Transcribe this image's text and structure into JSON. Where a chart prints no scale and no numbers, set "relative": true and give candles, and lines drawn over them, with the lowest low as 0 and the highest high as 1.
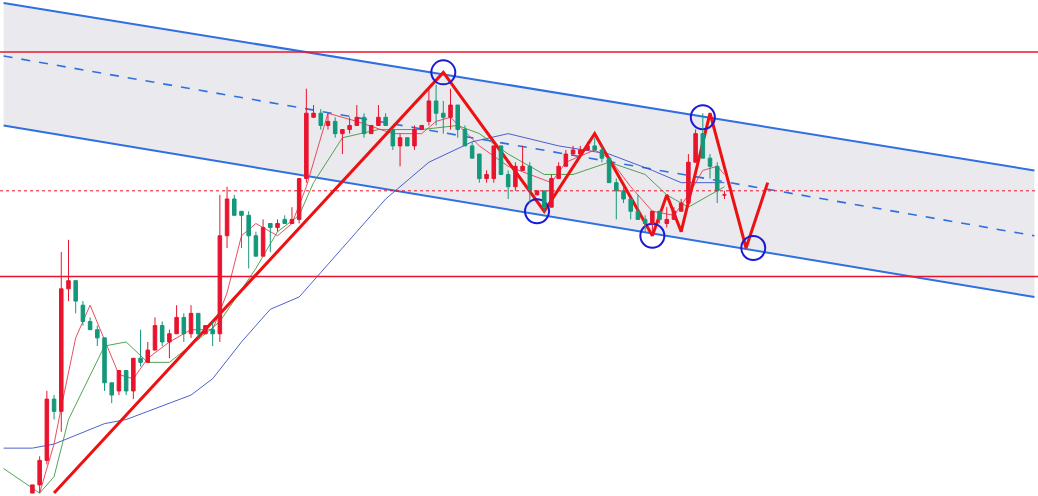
{
  "chart_data": {
    "type": "candlestick",
    "relative": true,
    "tick_labels": false,
    "categories": [
      null,
      null,
      null,
      null,
      null,
      null,
      null,
      null,
      null,
      null,
      null,
      null,
      null,
      null,
      null,
      null,
      null,
      null,
      null,
      null,
      null,
      null,
      null,
      null,
      null,
      null,
      null,
      null,
      null,
      null,
      null,
      null,
      null,
      null,
      null,
      null,
      null,
      null,
      null,
      null,
      null,
      null,
      null,
      null,
      null,
      null,
      null,
      null,
      null,
      null,
      null,
      null,
      null,
      null,
      null,
      null,
      null,
      null,
      null,
      null,
      null,
      null,
      null,
      null,
      null,
      null,
      null,
      null,
      null,
      null,
      null,
      null,
      null,
      null,
      null,
      null,
      null,
      null,
      null,
      null,
      null,
      null,
      null,
      null,
      null,
      null,
      null,
      null,
      null,
      null,
      null,
      null,
      null,
      null,
      null,
      null,
      null,
      null,
      null,
      null,
      null,
      null,
      null,
      null,
      null,
      null,
      null,
      null,
      null,
      null,
      null,
      null,
      null,
      null,
      null,
      null,
      null,
      null,
      null,
      null,
      null,
      null,
      null,
      null,
      null,
      null,
      null,
      null,
      null,
      null,
      null,
      null,
      null,
      null,
      null,
      null,
      null,
      null,
      null,
      null,
      null,
      null,
      null,
      null
    ],
    "colors": [
      null,
      null,
      null,
      null,
      "#e8142d",
      "#e8142d",
      "#e8142d",
      "#13987a",
      "#e8142d",
      "#e8142d",
      "#13987a",
      "#13987a",
      "#13987a",
      "#13987a",
      "#13987a",
      "#13987a",
      "#e8142d",
      "#13987a",
      "#e8142d",
      "#13987a",
      "#e8142d",
      "#e8142d",
      "#13987a",
      "#e8142d",
      "#e8142d",
      "#13987a",
      "#e8142d",
      "#13987a",
      "#e8142d",
      "#13987a",
      "#e8142d",
      "#e8142d",
      "#13987a",
      "#13987a",
      "#13987a",
      "#13987a",
      "#e8142d",
      "#13987a",
      "#e8142d",
      "#13987a",
      "#e8142d",
      "#e8142d",
      "#e8142d",
      "#e8142d",
      "#13987a",
      "#e8142d",
      "#13987a",
      "#e8142d",
      "#e8142d",
      "#e8142d",
      "#13987a",
      "#e8142d",
      "#e8142d",
      "#13987a",
      "#13987a",
      "#e8142d",
      "#13987a",
      "#e8142d",
      "#e8142d",
      "#e8142d",
      "#13987a",
      "#13987a",
      "#e8142d",
      "#13987a",
      "#13987a",
      "#13987a",
      "#13987a",
      "#e8142d",
      "#e8142d",
      "#13987a",
      "#13987a",
      "#e8142d",
      "#e8142d",
      "#13987a",
      "#e8142d",
      "#13987a",
      "#e8142d",
      "#e8142d",
      "#e8142d",
      "#e8142d",
      "#e8142d",
      "#e8142d",
      "#13987a",
      "#13987a",
      "#13987a",
      "#13987a",
      "#13987a",
      "#13987a",
      "#13987a",
      "#13987a",
      "#e8142d",
      "#13987a",
      "#e8142d",
      "#e8142d",
      "#e8142d",
      "#e8142d",
      "#e8142d",
      "#13987a",
      "#13987a",
      "#13987a",
      "#e8142d",
      null,
      null,
      null,
      null,
      null,
      null,
      null,
      null,
      null,
      null,
      null,
      null,
      null,
      null,
      null,
      null,
      null,
      null,
      null,
      null,
      null,
      null,
      null,
      null,
      null,
      null,
      null,
      null,
      null,
      null,
      null,
      null,
      null,
      null,
      null,
      null,
      null,
      null,
      null,
      null,
      null,
      null,
      null
    ],
    "ohlc": [
      null,
      null,
      null,
      null,
      [
        0.0,
        0.02,
        0.0,
        0.02
      ],
      [
        0.02,
        0.09,
        0.0,
        0.08
      ],
      [
        0.08,
        0.25,
        0.07,
        0.23
      ],
      [
        0.23,
        0.24,
        0.18,
        0.2
      ],
      [
        0.2,
        0.59,
        0.15,
        0.5
      ],
      [
        0.5,
        0.62,
        0.47,
        0.52
      ],
      [
        0.52,
        0.52,
        0.44,
        0.47
      ],
      [
        0.46,
        0.47,
        0.41,
        0.42
      ],
      [
        0.42,
        0.43,
        0.4,
        0.4
      ],
      [
        0.4,
        0.41,
        0.36,
        0.38
      ],
      [
        0.38,
        0.38,
        0.25,
        0.27
      ],
      [
        0.27,
        0.27,
        0.22,
        0.24
      ],
      [
        0.25,
        0.3,
        0.24,
        0.3
      ],
      [
        0.3,
        0.3,
        0.24,
        0.25
      ],
      [
        0.25,
        0.33,
        0.23,
        0.33
      ],
      [
        0.33,
        0.4,
        0.31,
        0.32
      ],
      [
        0.32,
        0.37,
        0.32,
        0.35
      ],
      [
        0.35,
        0.43,
        0.35,
        0.41
      ],
      [
        0.41,
        0.42,
        0.36,
        0.37
      ],
      [
        0.37,
        0.4,
        0.33,
        0.39
      ],
      [
        0.39,
        0.46,
        0.39,
        0.43
      ],
      [
        0.43,
        0.44,
        0.37,
        0.39
      ],
      [
        0.39,
        0.46,
        0.38,
        0.44
      ],
      [
        0.44,
        0.44,
        0.38,
        0.39
      ],
      [
        0.39,
        0.41,
        0.39,
        0.41
      ],
      [
        0.4,
        0.42,
        0.36,
        0.39
      ],
      [
        0.39,
        0.73,
        0.37,
        0.63
      ],
      [
        0.63,
        0.75,
        0.6,
        0.72
      ],
      [
        0.72,
        0.73,
        0.68,
        0.68
      ],
      [
        0.69,
        0.69,
        0.6,
        0.68
      ],
      [
        0.68,
        0.69,
        0.55,
        0.63
      ],
      [
        0.63,
        0.64,
        0.58,
        0.58
      ],
      [
        0.58,
        0.67,
        0.58,
        0.65
      ],
      [
        0.66,
        0.66,
        0.59,
        0.65
      ],
      [
        0.65,
        0.67,
        0.64,
        0.66
      ],
      [
        0.67,
        0.68,
        0.66,
        0.66
      ],
      [
        0.66,
        0.7,
        0.66,
        0.67
      ],
      [
        0.67,
        0.77,
        0.66,
        0.77
      ],
      [
        0.77,
        0.99,
        0.76,
        0.93
      ],
      [
        0.92,
        0.95,
        0.92,
        0.93
      ],
      [
        0.93,
        0.94,
        0.89,
        0.9
      ],
      [
        0.9,
        0.93,
        0.89,
        0.91
      ],
      [
        0.91,
        0.92,
        0.87,
        0.88
      ],
      [
        0.88,
        0.89,
        0.83,
        0.89
      ],
      [
        0.89,
        0.92,
        0.88,
        0.9
      ],
      [
        0.9,
        0.95,
        0.9,
        0.92
      ],
      [
        0.92,
        0.93,
        0.87,
        0.88
      ],
      [
        0.88,
        0.9,
        0.88,
        0.9
      ],
      [
        0.9,
        0.95,
        0.9,
        0.92
      ],
      [
        0.92,
        0.93,
        0.9,
        0.9
      ],
      [
        0.89,
        0.89,
        0.84,
        0.85
      ],
      [
        0.85,
        0.88,
        0.8,
        0.87
      ],
      [
        0.87,
        0.87,
        0.85,
        0.85
      ],
      [
        0.85,
        0.9,
        0.84,
        0.89
      ],
      [
        0.89,
        0.9,
        0.89,
        0.9
      ],
      [
        0.91,
        0.99,
        0.9,
        0.96
      ],
      [
        0.96,
        1.0,
        0.9,
        0.93
      ],
      [
        0.93,
        0.96,
        0.88,
        0.92
      ],
      [
        0.92,
        0.99,
        0.89,
        0.95
      ],
      [
        0.95,
        0.95,
        0.87,
        0.89
      ],
      [
        0.89,
        0.9,
        0.85,
        0.85
      ],
      [
        0.85,
        0.86,
        0.82,
        0.82
      ],
      [
        0.83,
        0.83,
        0.76,
        0.77
      ],
      [
        0.77,
        0.79,
        0.76,
        0.78
      ],
      [
        0.77,
        0.85,
        0.76,
        0.85
      ],
      [
        0.85,
        0.85,
        0.78,
        0.78
      ],
      [
        0.78,
        0.79,
        0.72,
        0.75
      ],
      [
        0.75,
        0.81,
        0.74,
        0.8
      ],
      [
        0.79,
        0.85,
        0.79,
        0.8
      ],
      [
        0.8,
        0.81,
        0.71,
        0.74
      ],
      [
        0.73,
        0.74,
        0.73,
        0.74
      ],
      [
        0.74,
        0.74,
        0.69,
        0.7
      ],
      [
        0.7,
        0.78,
        0.7,
        0.77
      ],
      [
        0.77,
        0.81,
        0.77,
        0.8
      ],
      [
        0.8,
        0.84,
        0.8,
        0.83
      ],
      [
        0.83,
        0.85,
        0.83,
        0.84
      ],
      [
        0.83,
        0.85,
        0.83,
        0.84
      ],
      [
        0.84,
        0.86,
        0.84,
        0.85
      ],
      [
        0.85,
        0.87,
        0.84,
        0.84
      ],
      [
        0.84,
        0.85,
        0.81,
        0.82
      ],
      [
        0.82,
        0.82,
        0.76,
        0.76
      ],
      [
        0.76,
        0.77,
        0.67,
        0.74
      ],
      [
        0.74,
        0.75,
        0.71,
        0.72
      ],
      [
        0.72,
        0.72,
        0.67,
        0.69
      ],
      [
        0.69,
        0.73,
        0.67,
        0.67
      ],
      [
        0.67,
        0.68,
        0.64,
        0.66
      ],
      [
        0.66,
        0.69,
        0.63,
        0.69
      ],
      [
        0.69,
        0.69,
        0.66,
        0.67
      ],
      [
        0.66,
        0.7,
        0.65,
        0.67
      ],
      [
        0.67,
        0.7,
        0.67,
        0.69
      ],
      [
        0.69,
        0.72,
        0.69,
        0.71
      ],
      [
        0.71,
        0.83,
        0.71,
        0.81
      ],
      [
        0.81,
        0.89,
        0.81,
        0.88
      ],
      [
        0.88,
        0.93,
        0.82,
        0.82
      ],
      [
        0.82,
        0.83,
        0.77,
        0.8
      ],
      [
        0.8,
        0.81,
        0.71,
        0.74
      ],
      [
        0.73,
        0.74,
        0.72,
        0.73
      ],
      null,
      null,
      null,
      null,
      null,
      null,
      null,
      null,
      null,
      null,
      null,
      null,
      null,
      null,
      null,
      null,
      null,
      null,
      null,
      null,
      null,
      null,
      null,
      null,
      null,
      null,
      null,
      null,
      null,
      null,
      null,
      null,
      null,
      null,
      null,
      null,
      null,
      null,
      null,
      null,
      null,
      null,
      null
    ],
    "series": [
      {
        "type": "line",
        "color": "#2f6fe0",
        "line_style": "dashed",
        "values": [
          1.07,
          null,
          null,
          null,
          null,
          null,
          null,
          null,
          null,
          null,
          null,
          null,
          null,
          null,
          null,
          null,
          null,
          null,
          null,
          null,
          null,
          null,
          null,
          null,
          null,
          null,
          null,
          null,
          null,
          null,
          null,
          null,
          null,
          null,
          null,
          null,
          null,
          null,
          null,
          null,
          null,
          null,
          null,
          null,
          null,
          null,
          null,
          null,
          null,
          null,
          null,
          null,
          null,
          null,
          null,
          null,
          null,
          null,
          null,
          null,
          null,
          null,
          null,
          null,
          null,
          null,
          null,
          null,
          null,
          null,
          null,
          null,
          null,
          null,
          null,
          null,
          null,
          null,
          null,
          null,
          null,
          null,
          null,
          null,
          null,
          null,
          null,
          null,
          null,
          null,
          null,
          null,
          null,
          null,
          null,
          null,
          null,
          null,
          null,
          null,
          null,
          null,
          null,
          null,
          null,
          null,
          null,
          null,
          null,
          null,
          null,
          null,
          null,
          null,
          null,
          null,
          null,
          null,
          null,
          null,
          null,
          null,
          null,
          null,
          null,
          null,
          null,
          null,
          null,
          null,
          null,
          null,
          null,
          null,
          null,
          null,
          null,
          null,
          null,
          null,
          null,
          null,
          null,
          0.63
        ],
        "lower": [
          0.9,
          null,
          null,
          null,
          null,
          null,
          null,
          null,
          null,
          null,
          null,
          null,
          null,
          null,
          null,
          null,
          null,
          null,
          null,
          null,
          null,
          null,
          null,
          null,
          null,
          null,
          null,
          null,
          null,
          null,
          null,
          null,
          null,
          null,
          null,
          null,
          null,
          null,
          null,
          null,
          null,
          null,
          null,
          null,
          null,
          null,
          null,
          null,
          null,
          null,
          null,
          null,
          null,
          null,
          null,
          null,
          null,
          null,
          null,
          null,
          null,
          null,
          null,
          null,
          null,
          null,
          null,
          null,
          null,
          null,
          null,
          null,
          null,
          null,
          null,
          null,
          null,
          null,
          null,
          null,
          null,
          null,
          null,
          null,
          null,
          null,
          null,
          null,
          null,
          null,
          null,
          null,
          null,
          null,
          null,
          null,
          null,
          null,
          null,
          null,
          null,
          null,
          null,
          null,
          null,
          null,
          null,
          null,
          null,
          null,
          null,
          null,
          null,
          null,
          null,
          null,
          null,
          null,
          null,
          null,
          null,
          null,
          null,
          null,
          null,
          null,
          null,
          null,
          null,
          null,
          null,
          null,
          null,
          null,
          null,
          null,
          null,
          null,
          null,
          null,
          null,
          null,
          null,
          0.48
        ],
        "upper": [
          1.2,
          null,
          null,
          null,
          null,
          null,
          null,
          null,
          null,
          null,
          null,
          null,
          null,
          null,
          null,
          null,
          null,
          null,
          null,
          null,
          null,
          null,
          null,
          null,
          null,
          null,
          null,
          null,
          null,
          null,
          null,
          null,
          null,
          null,
          null,
          null,
          null,
          null,
          null,
          null,
          null,
          null,
          null,
          null,
          null,
          null,
          null,
          null,
          null,
          null,
          null,
          null,
          null,
          null,
          null,
          null,
          null,
          null,
          null,
          null,
          null,
          null,
          null,
          null,
          null,
          null,
          null,
          null,
          null,
          null,
          null,
          null,
          null,
          null,
          null,
          null,
          null,
          null,
          null,
          null,
          null,
          null,
          null,
          null,
          null,
          null,
          null,
          null,
          null,
          null,
          null,
          null,
          null,
          null,
          null,
          null,
          null,
          null,
          null,
          null,
          null,
          null,
          null,
          null,
          null,
          null,
          null,
          null,
          null,
          null,
          null,
          null,
          null,
          null,
          null,
          null,
          null,
          null,
          null,
          null,
          null,
          null,
          null,
          null,
          null,
          null,
          null,
          null,
          null,
          null,
          null,
          null,
          null,
          null,
          null,
          null,
          null,
          null,
          null,
          null,
          null,
          null,
          null,
          0.79
        ]
      },
      {
        "type": "line",
        "color": "#2f6fe0",
        "line_style": "solid",
        "values": [
          1.2,
          null,
          null,
          null,
          null,
          null,
          null,
          null,
          null,
          null,
          null,
          null,
          null,
          null,
          null,
          null,
          null,
          null,
          null,
          null,
          null,
          null,
          null,
          null,
          null,
          null,
          null,
          null,
          null,
          null,
          null,
          null,
          null,
          null,
          null,
          null,
          null,
          null,
          null,
          null,
          null,
          null,
          null,
          null,
          null,
          null,
          null,
          null,
          null,
          null,
          null,
          null,
          null,
          null,
          null,
          null,
          null,
          null,
          null,
          null,
          null,
          null,
          null,
          null,
          null,
          null,
          null,
          null,
          null,
          null,
          null,
          null,
          null,
          null,
          null,
          null,
          null,
          null,
          null,
          null,
          null,
          null,
          null,
          null,
          null,
          null,
          null,
          null,
          null,
          null,
          null,
          null,
          null,
          null,
          null,
          null,
          null,
          null,
          null,
          null,
          null,
          null,
          null,
          null,
          null,
          null,
          null,
          null,
          null,
          null,
          null,
          null,
          null,
          null,
          null,
          null,
          null,
          null,
          null,
          null,
          null,
          null,
          null,
          null,
          null,
          null,
          null,
          null,
          null,
          null,
          null,
          null,
          null,
          null,
          null,
          null,
          null,
          null,
          null,
          null,
          null,
          null,
          null,
          0.79
        ]
      },
      {
        "type": "line",
        "color": "#2f6fe0",
        "line_style": "solid",
        "values": [
          0.9,
          null,
          null,
          null,
          null,
          null,
          null,
          null,
          null,
          null,
          null,
          null,
          null,
          null,
          null,
          null,
          null,
          null,
          null,
          null,
          null,
          null,
          null,
          null,
          null,
          null,
          null,
          null,
          null,
          null,
          null,
          null,
          null,
          null,
          null,
          null,
          null,
          null,
          null,
          null,
          null,
          null,
          null,
          null,
          null,
          null,
          null,
          null,
          null,
          null,
          null,
          null,
          null,
          null,
          null,
          null,
          null,
          null,
          null,
          null,
          null,
          null,
          null,
          null,
          null,
          null,
          null,
          null,
          null,
          null,
          null,
          null,
          null,
          null,
          null,
          null,
          null,
          null,
          null,
          null,
          null,
          null,
          null,
          null,
          null,
          null,
          null,
          null,
          null,
          null,
          null,
          null,
          null,
          null,
          null,
          null,
          null,
          null,
          null,
          null,
          null,
          null,
          null,
          null,
          null,
          null,
          null,
          null,
          null,
          null,
          null,
          null,
          null,
          null,
          null,
          null,
          null,
          null,
          null,
          null,
          null,
          null,
          null,
          null,
          null,
          null,
          null,
          null,
          null,
          null,
          null,
          null,
          null,
          null,
          null,
          null,
          null,
          null,
          null,
          null,
          null,
          null,
          null,
          0.48
        ]
      },
      {
        "type": "line",
        "color": "#3a4fc8",
        "line_style": "solid",
        "values": [
          0.11,
          null,
          null,
          null,
          0.11,
          null,
          null,
          0.12,
          null,
          null,
          null,
          null,
          null,
          null,
          0.17,
          null,
          null,
          0.18,
          null,
          null,
          0.2,
          null,
          null,
          null,
          null,
          null,
          0.24,
          null,
          null,
          0.28,
          null,
          null,
          null,
          0.37,
          null,
          null,
          null,
          0.45,
          null,
          null,
          null,
          0.48,
          null,
          null,
          0.54,
          null,
          null,
          0.6,
          null,
          null,
          null,
          null,
          null,
          0.72,
          null,
          null,
          null,
          null,
          null,
          0.81,
          null,
          null,
          null,
          null,
          null,
          0.86,
          null,
          null,
          null,
          null,
          0.88,
          null,
          null,
          null,
          null,
          null,
          null,
          0.85,
          null,
          null,
          null,
          null,
          null,
          null,
          0.83,
          null,
          null,
          null,
          null,
          null,
          0.79,
          null,
          null,
          null,
          0.76,
          null,
          null,
          null,
          null,
          null,
          0.76,
          null,
          null,
          null,
          null,
          null,
          null,
          null,
          null,
          null,
          null,
          null,
          null,
          null,
          null,
          null,
          null,
          null,
          null,
          null,
          null,
          null,
          null,
          null,
          null,
          null,
          null,
          null,
          null,
          null,
          null,
          null,
          null,
          null,
          null,
          null,
          null,
          null,
          null,
          null,
          null,
          null,
          null,
          null
        ]
      },
      {
        "type": "line",
        "color": "#3f9a3f",
        "line_style": "solid",
        "values": [
          0.06,
          null,
          null,
          null,
          null,
          0.0,
          null,
          0.04,
          null,
          0.18,
          null,
          null,
          null,
          null,
          0.36,
          null,
          null,
          0.37,
          null,
          null,
          0.32,
          null,
          null,
          0.32,
          null,
          null,
          null,
          null,
          0.39,
          null,
          0.42,
          null,
          null,
          null,
          null,
          0.55,
          null,
          null,
          0.64,
          null,
          null,
          0.68,
          null,
          0.76,
          null,
          null,
          null,
          0.87,
          null,
          null,
          null,
          null,
          0.89,
          null,
          null,
          null,
          null,
          null,
          0.89,
          null,
          null,
          null,
          null,
          0.9,
          null,
          null,
          0.88,
          null,
          null,
          null,
          0.83,
          null,
          null,
          null,
          null,
          0.78,
          null,
          null,
          null,
          0.78,
          null,
          null,
          null,
          null,
          0.81,
          null,
          null,
          null,
          null,
          0.78,
          null,
          null,
          0.73,
          null,
          null,
          0.7,
          null,
          null,
          0.73,
          null,
          0.75,
          null,
          null,
          null,
          null,
          null,
          null,
          null,
          null,
          null,
          null,
          null,
          null,
          null,
          null,
          null,
          null,
          null,
          null,
          null,
          null,
          null,
          null,
          null,
          null,
          null,
          null,
          null,
          null,
          null,
          null,
          null,
          null,
          null,
          null,
          null,
          null,
          null,
          null,
          null,
          null,
          null,
          null,
          null
        ]
      },
      {
        "type": "line",
        "color": "#e83a4a",
        "line_style": "solid",
        "values": [
          null,
          null,
          null,
          null,
          null,
          0.0,
          null,
          0.12,
          0.21,
          null,
          0.38,
          null,
          0.46,
          null,
          null,
          null,
          0.29,
          null,
          0.28,
          null,
          0.33,
          null,
          null,
          0.37,
          null,
          null,
          0.4,
          null,
          null,
          0.4,
          null,
          0.49,
          null,
          0.63,
          null,
          0.66,
          null,
          null,
          0.63,
          null,
          0.66,
          null,
          0.75,
          null,
          null,
          0.93,
          null,
          null,
          null,
          0.91,
          null,
          null,
          null,
          null,
          0.88,
          null,
          null,
          null,
          0.88,
          null,
          0.91,
          null,
          0.92,
          null,
          null,
          null,
          0.85,
          null,
          null,
          null,
          0.8,
          null,
          null,
          0.78,
          null,
          null,
          0.76,
          null,
          0.81,
          null,
          null,
          null,
          0.84,
          null,
          0.82,
          null,
          null,
          0.75,
          null,
          null,
          0.69,
          null,
          null,
          0.68,
          null,
          0.73,
          null,
          0.79,
          null,
          0.8,
          0.78,
          null,
          null,
          null,
          null,
          null,
          null,
          null,
          null,
          null,
          null,
          null,
          null,
          null,
          null,
          null,
          null,
          null,
          null,
          null,
          null,
          null,
          null,
          null,
          null,
          null,
          null,
          null,
          null,
          null,
          null,
          null,
          null,
          null,
          null,
          null,
          null,
          null,
          null,
          null,
          null,
          null,
          null,
          null
        ]
      },
      {
        "type": "line",
        "color": "#ee1111",
        "line_style": "solid",
        "values": [
          null,
          null,
          null,
          null,
          null,
          null,
          null,
          0.0,
          null,
          null,
          null,
          null,
          null,
          null,
          null,
          null,
          null,
          null,
          null,
          null,
          null,
          null,
          null,
          null,
          null,
          null,
          null,
          null,
          null,
          null,
          null,
          null,
          null,
          null,
          null,
          null,
          null,
          null,
          null,
          null,
          null,
          null,
          null,
          null,
          null,
          null,
          null,
          null,
          null,
          null,
          null,
          null,
          null,
          null,
          null,
          null,
          null,
          null,
          null,
          null,
          null,
          1.03,
          null,
          null,
          null,
          null,
          null,
          null,
          null,
          null,
          null,
          null,
          null,
          null,
          null,
          0.69,
          null,
          null,
          null,
          null,
          null,
          null,
          0.88,
          null,
          null,
          null,
          null,
          null,
          null,
          null,
          0.63,
          null,
          0.73,
          null,
          0.64,
          null,
          null,
          null,
          0.93,
          null,
          null,
          null,
          null,
          0.6,
          null,
          null,
          0.76,
          null,
          null,
          null,
          null,
          null,
          null,
          null,
          null,
          null,
          null,
          null,
          null,
          null,
          null,
          null,
          null,
          null,
          null,
          null,
          null,
          null,
          null,
          null,
          null,
          null,
          null,
          null,
          null,
          null,
          null,
          null,
          null,
          null,
          null,
          null,
          null,
          null
        ]
      },
      {
        "type": "scatter",
        "color": "#1a1ad8",
        "marker": "circle",
        "values": [
          null,
          null,
          null,
          null,
          null,
          null,
          null,
          null,
          null,
          null,
          null,
          null,
          null,
          null,
          null,
          null,
          null,
          null,
          null,
          null,
          null,
          null,
          null,
          null,
          null,
          null,
          null,
          null,
          null,
          null,
          null,
          null,
          null,
          null,
          null,
          null,
          null,
          null,
          null,
          null,
          null,
          null,
          null,
          null,
          null,
          null,
          null,
          null,
          null,
          null,
          null,
          null,
          null,
          null,
          null,
          null,
          null,
          null,
          null,
          null,
          null,
          1.03,
          null,
          null,
          null,
          null,
          null,
          null,
          null,
          null,
          null,
          null,
          null,
          null,
          0.69,
          null,
          null,
          null,
          null,
          null,
          null,
          null,
          null,
          null,
          null,
          null,
          null,
          null,
          null,
          null,
          0.63,
          null,
          null,
          null,
          null,
          null,
          null,
          0.92,
          null,
          null,
          null,
          null,
          null,
          null,
          0.6,
          null,
          null,
          null,
          null,
          null,
          null,
          null,
          null,
          null,
          null,
          null,
          null,
          null,
          null,
          null,
          null,
          null,
          null,
          null,
          null,
          null,
          null,
          null,
          null,
          null,
          null,
          null,
          null,
          null,
          null,
          null,
          null,
          null,
          null,
          null,
          null,
          null,
          null,
          null
        ]
      }
    ],
    "ref_lines": [
      {
        "axis": "y",
        "value": 1.08,
        "color": "#e8142d",
        "line_style": "solid"
      },
      {
        "axis": "y",
        "value": 0.53,
        "color": "#e8142d",
        "line_style": "solid"
      },
      {
        "axis": "y",
        "value": 0.74,
        "color": "#e8142d",
        "line_style": "dotted"
      }
    ]
  }
}
